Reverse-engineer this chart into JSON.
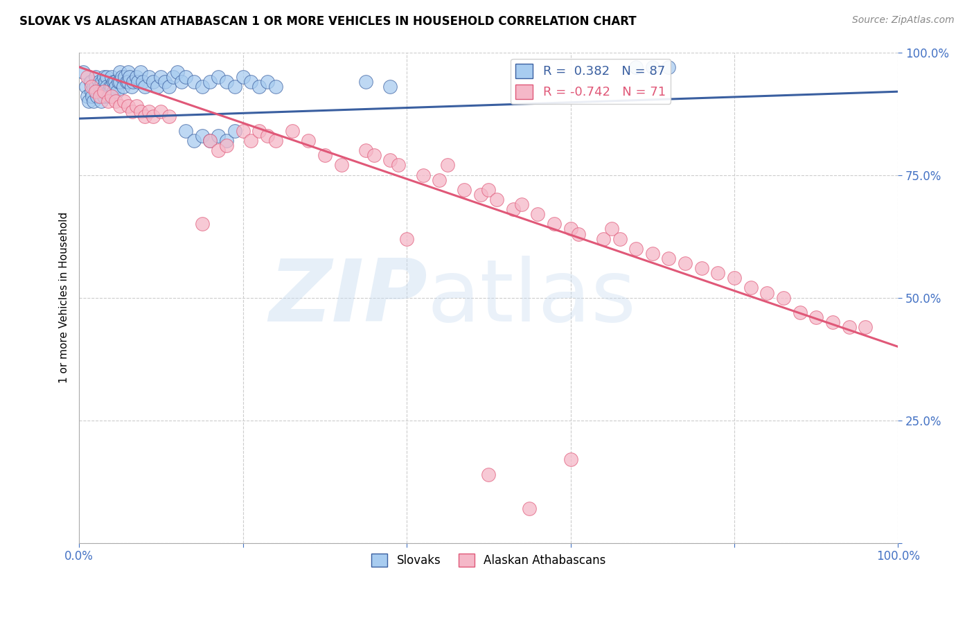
{
  "title": "SLOVAK VS ALASKAN ATHABASCAN 1 OR MORE VEHICLES IN HOUSEHOLD CORRELATION CHART",
  "source": "Source: ZipAtlas.com",
  "ylabel": "1 or more Vehicles in Household",
  "xlim": [
    0,
    1
  ],
  "ylim": [
    0,
    1
  ],
  "yticks": [
    0,
    0.25,
    0.5,
    0.75,
    1.0
  ],
  "ytick_labels": [
    "",
    "25.0%",
    "50.0%",
    "75.0%",
    "100.0%"
  ],
  "xticks": [
    0,
    0.2,
    0.4,
    0.6,
    0.8,
    1.0
  ],
  "xtick_labels": [
    "0.0%",
    "",
    "",
    "",
    "",
    "100.0%"
  ],
  "slovak_R": 0.382,
  "slovak_N": 87,
  "athabascan_R": -0.742,
  "athabascan_N": 71,
  "slovak_color": "#A8CCF0",
  "athabascan_color": "#F5B8C8",
  "trendline_slovak_color": "#3A5FA0",
  "trendline_athabascan_color": "#E05878",
  "legend_label_slovak": "Slovaks",
  "legend_label_athabascan": "Alaskan Athabascans",
  "slovak_trendline": [
    0.0,
    0.865,
    1.0,
    0.92
  ],
  "athabascan_trendline": [
    0.0,
    0.97,
    1.0,
    0.4
  ],
  "slovak_points": [
    [
      0.005,
      0.96
    ],
    [
      0.008,
      0.93
    ],
    [
      0.01,
      0.91
    ],
    [
      0.012,
      0.9
    ],
    [
      0.014,
      0.94
    ],
    [
      0.015,
      0.92
    ],
    [
      0.016,
      0.91
    ],
    [
      0.018,
      0.93
    ],
    [
      0.018,
      0.9
    ],
    [
      0.02,
      0.95
    ],
    [
      0.02,
      0.93
    ],
    [
      0.022,
      0.92
    ],
    [
      0.022,
      0.91
    ],
    [
      0.024,
      0.94
    ],
    [
      0.025,
      0.93
    ],
    [
      0.026,
      0.92
    ],
    [
      0.027,
      0.9
    ],
    [
      0.028,
      0.94
    ],
    [
      0.028,
      0.92
    ],
    [
      0.03,
      0.95
    ],
    [
      0.03,
      0.93
    ],
    [
      0.03,
      0.91
    ],
    [
      0.032,
      0.94
    ],
    [
      0.032,
      0.92
    ],
    [
      0.034,
      0.95
    ],
    [
      0.034,
      0.93
    ],
    [
      0.035,
      0.92
    ],
    [
      0.036,
      0.91
    ],
    [
      0.038,
      0.93
    ],
    [
      0.038,
      0.92
    ],
    [
      0.04,
      0.95
    ],
    [
      0.04,
      0.93
    ],
    [
      0.042,
      0.94
    ],
    [
      0.042,
      0.92
    ],
    [
      0.044,
      0.94
    ],
    [
      0.045,
      0.93
    ],
    [
      0.046,
      0.92
    ],
    [
      0.048,
      0.94
    ],
    [
      0.05,
      0.96
    ],
    [
      0.05,
      0.94
    ],
    [
      0.052,
      0.95
    ],
    [
      0.054,
      0.93
    ],
    [
      0.056,
      0.95
    ],
    [
      0.058,
      0.94
    ],
    [
      0.06,
      0.96
    ],
    [
      0.06,
      0.94
    ],
    [
      0.062,
      0.95
    ],
    [
      0.064,
      0.93
    ],
    [
      0.066,
      0.94
    ],
    [
      0.07,
      0.95
    ],
    [
      0.072,
      0.94
    ],
    [
      0.075,
      0.96
    ],
    [
      0.078,
      0.94
    ],
    [
      0.08,
      0.93
    ],
    [
      0.085,
      0.95
    ],
    [
      0.09,
      0.94
    ],
    [
      0.095,
      0.93
    ],
    [
      0.1,
      0.95
    ],
    [
      0.105,
      0.94
    ],
    [
      0.11,
      0.93
    ],
    [
      0.115,
      0.95
    ],
    [
      0.12,
      0.96
    ],
    [
      0.125,
      0.94
    ],
    [
      0.13,
      0.95
    ],
    [
      0.14,
      0.94
    ],
    [
      0.15,
      0.93
    ],
    [
      0.16,
      0.94
    ],
    [
      0.17,
      0.95
    ],
    [
      0.18,
      0.94
    ],
    [
      0.19,
      0.93
    ],
    [
      0.2,
      0.95
    ],
    [
      0.21,
      0.94
    ],
    [
      0.22,
      0.93
    ],
    [
      0.23,
      0.94
    ],
    [
      0.24,
      0.93
    ],
    [
      0.13,
      0.84
    ],
    [
      0.14,
      0.82
    ],
    [
      0.15,
      0.83
    ],
    [
      0.16,
      0.82
    ],
    [
      0.17,
      0.83
    ],
    [
      0.18,
      0.82
    ],
    [
      0.19,
      0.84
    ],
    [
      0.68,
      0.97
    ],
    [
      0.7,
      0.97
    ],
    [
      0.72,
      0.97
    ],
    [
      0.35,
      0.94
    ],
    [
      0.38,
      0.93
    ]
  ],
  "athabascan_points": [
    [
      0.01,
      0.95
    ],
    [
      0.015,
      0.93
    ],
    [
      0.02,
      0.92
    ],
    [
      0.025,
      0.91
    ],
    [
      0.03,
      0.92
    ],
    [
      0.035,
      0.9
    ],
    [
      0.04,
      0.91
    ],
    [
      0.045,
      0.9
    ],
    [
      0.05,
      0.89
    ],
    [
      0.055,
      0.9
    ],
    [
      0.06,
      0.89
    ],
    [
      0.065,
      0.88
    ],
    [
      0.07,
      0.89
    ],
    [
      0.075,
      0.88
    ],
    [
      0.08,
      0.87
    ],
    [
      0.085,
      0.88
    ],
    [
      0.09,
      0.87
    ],
    [
      0.1,
      0.88
    ],
    [
      0.11,
      0.87
    ],
    [
      0.16,
      0.82
    ],
    [
      0.17,
      0.8
    ],
    [
      0.18,
      0.81
    ],
    [
      0.2,
      0.84
    ],
    [
      0.21,
      0.82
    ],
    [
      0.22,
      0.84
    ],
    [
      0.23,
      0.83
    ],
    [
      0.24,
      0.82
    ],
    [
      0.26,
      0.84
    ],
    [
      0.28,
      0.82
    ],
    [
      0.3,
      0.79
    ],
    [
      0.32,
      0.77
    ],
    [
      0.35,
      0.8
    ],
    [
      0.36,
      0.79
    ],
    [
      0.38,
      0.78
    ],
    [
      0.39,
      0.77
    ],
    [
      0.42,
      0.75
    ],
    [
      0.44,
      0.74
    ],
    [
      0.45,
      0.77
    ],
    [
      0.47,
      0.72
    ],
    [
      0.49,
      0.71
    ],
    [
      0.5,
      0.72
    ],
    [
      0.51,
      0.7
    ],
    [
      0.53,
      0.68
    ],
    [
      0.54,
      0.69
    ],
    [
      0.56,
      0.67
    ],
    [
      0.58,
      0.65
    ],
    [
      0.6,
      0.64
    ],
    [
      0.61,
      0.63
    ],
    [
      0.64,
      0.62
    ],
    [
      0.65,
      0.64
    ],
    [
      0.66,
      0.62
    ],
    [
      0.68,
      0.6
    ],
    [
      0.7,
      0.59
    ],
    [
      0.72,
      0.58
    ],
    [
      0.74,
      0.57
    ],
    [
      0.76,
      0.56
    ],
    [
      0.78,
      0.55
    ],
    [
      0.8,
      0.54
    ],
    [
      0.82,
      0.52
    ],
    [
      0.84,
      0.51
    ],
    [
      0.86,
      0.5
    ],
    [
      0.88,
      0.47
    ],
    [
      0.9,
      0.46
    ],
    [
      0.92,
      0.45
    ],
    [
      0.94,
      0.44
    ],
    [
      0.96,
      0.44
    ],
    [
      0.15,
      0.65
    ],
    [
      0.4,
      0.62
    ],
    [
      0.5,
      0.14
    ],
    [
      0.55,
      0.07
    ],
    [
      0.6,
      0.17
    ]
  ]
}
